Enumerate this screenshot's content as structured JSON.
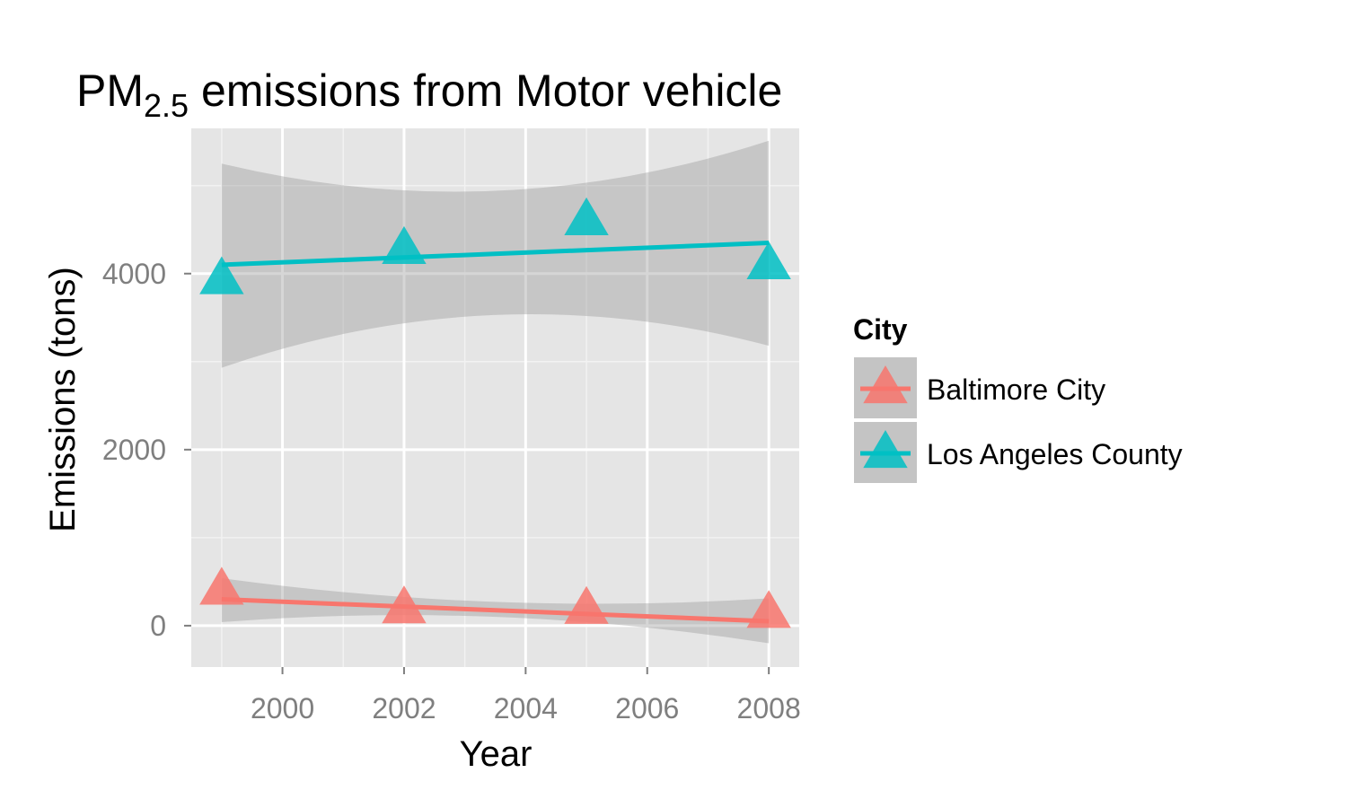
{
  "chart_data": {
    "type": "line",
    "title": {
      "main": "PM",
      "subscript": "2.5",
      "rest": " emissions from Motor vehicle"
    },
    "xlabel": "Year",
    "ylabel": "Emissions (tons)",
    "xlim": [
      1998.5,
      2008.5
    ],
    "ylim": [
      -470,
      5650
    ],
    "x_ticks": [
      2000,
      2002,
      2004,
      2006,
      2008
    ],
    "y_ticks": [
      0,
      2000,
      4000
    ],
    "grid": true,
    "legend": {
      "title": "City",
      "position": "right"
    },
    "panel_background": "#E5E5E5",
    "series": [
      {
        "name": "Baltimore City",
        "color": "#F8766D",
        "marker": "triangle",
        "points": [
          {
            "x": 1999,
            "y": 403
          },
          {
            "x": 2002,
            "y": 192
          },
          {
            "x": 2005,
            "y": 185
          },
          {
            "x": 2008,
            "y": 139
          }
        ],
        "fit": {
          "x": [
            1999,
            2008
          ],
          "y": [
            300,
            50
          ]
        },
        "band": {
          "x": [
            1999,
            2003.5,
            2008
          ],
          "lower": [
            40,
            100,
            -200
          ],
          "upper": [
            540,
            270,
            310
          ]
        }
      },
      {
        "name": "Los Angeles County",
        "color": "#00BFC4",
        "marker": "triangle",
        "points": [
          {
            "x": 1999,
            "y": 3931
          },
          {
            "x": 2002,
            "y": 4274
          },
          {
            "x": 2005,
            "y": 4601
          },
          {
            "x": 2008,
            "y": 4101
          }
        ],
        "fit": {
          "x": [
            1999,
            2008
          ],
          "y": [
            4100,
            4350
          ]
        },
        "band": {
          "x": [
            1999,
            2003.5,
            2008
          ],
          "lower": [
            2930,
            3530,
            3180
          ],
          "upper": [
            5250,
            4940,
            5510
          ]
        }
      }
    ]
  }
}
